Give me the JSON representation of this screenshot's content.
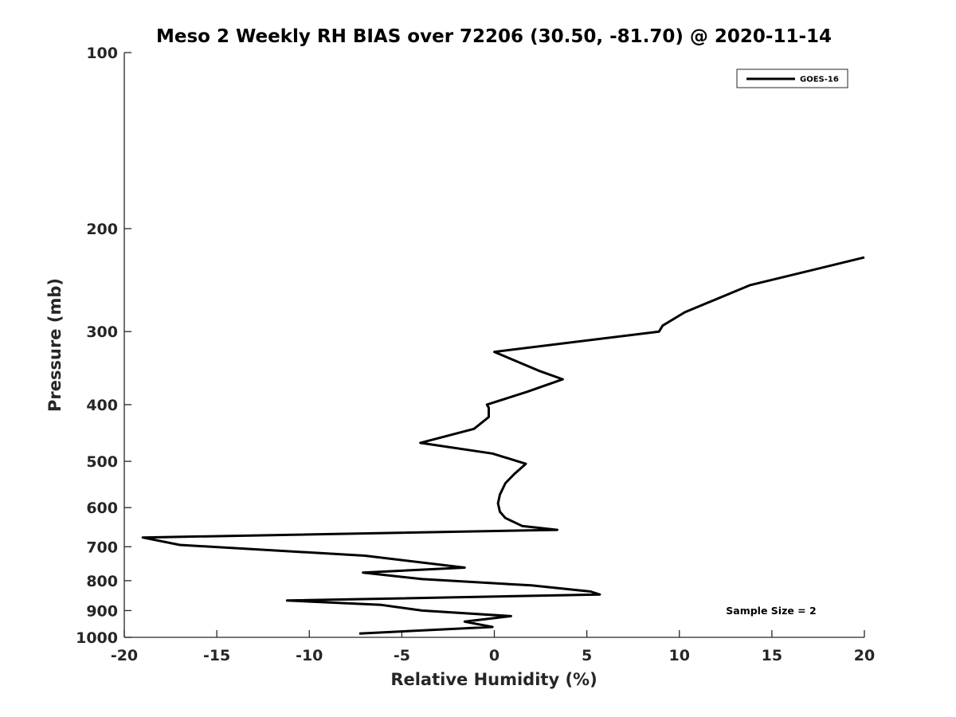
{
  "chart_data": {
    "type": "line",
    "title": "Meso 2 Weekly RH BIAS over 72206 (30.50, -81.70) @ 2020-11-14",
    "xlabel": "Relative Humidity (%)",
    "ylabel": "Pressure (mb)",
    "xlim": [
      -20,
      20
    ],
    "ylim": [
      100,
      1000
    ],
    "y_scale": "log",
    "y_reversed": true,
    "x_ticks": [
      -20,
      -15,
      -10,
      -5,
      0,
      5,
      10,
      15,
      20
    ],
    "y_ticks": [
      100,
      200,
      300,
      400,
      500,
      600,
      700,
      800,
      900,
      1000
    ],
    "grid": false,
    "legend": {
      "position": "top-right",
      "entries": [
        "GOES-16"
      ]
    },
    "annotation": "Sample Size = 2",
    "series": [
      {
        "name": "GOES-16",
        "color": "#000000",
        "points": [
          [
            20.0,
            224
          ],
          [
            13.8,
            250
          ],
          [
            10.3,
            278
          ],
          [
            9.1,
            293
          ],
          [
            8.9,
            300
          ],
          [
            0.0,
            325
          ],
          [
            2.4,
            350
          ],
          [
            3.7,
            362
          ],
          [
            1.8,
            380
          ],
          [
            -0.4,
            400
          ],
          [
            -0.3,
            405
          ],
          [
            -0.3,
            420
          ],
          [
            -1.1,
            440
          ],
          [
            -4.0,
            465
          ],
          [
            -0.1,
            485
          ],
          [
            1.7,
            505
          ],
          [
            1.1,
            525
          ],
          [
            0.6,
            545
          ],
          [
            0.3,
            570
          ],
          [
            0.2,
            590
          ],
          [
            0.3,
            610
          ],
          [
            0.6,
            625
          ],
          [
            1.5,
            645
          ],
          [
            3.4,
            655
          ],
          [
            -19.0,
            675
          ],
          [
            -17.0,
            695
          ],
          [
            -7.0,
            725
          ],
          [
            -1.6,
            760
          ],
          [
            -7.1,
            775
          ],
          [
            -3.9,
            795
          ],
          [
            2.0,
            815
          ],
          [
            5.2,
            835
          ],
          [
            5.7,
            845
          ],
          [
            -11.2,
            865
          ],
          [
            -6.1,
            880
          ],
          [
            -3.9,
            900
          ],
          [
            0.9,
            920
          ],
          [
            -1.6,
            940
          ],
          [
            -0.1,
            960
          ],
          [
            -7.3,
            985
          ]
        ]
      }
    ]
  }
}
